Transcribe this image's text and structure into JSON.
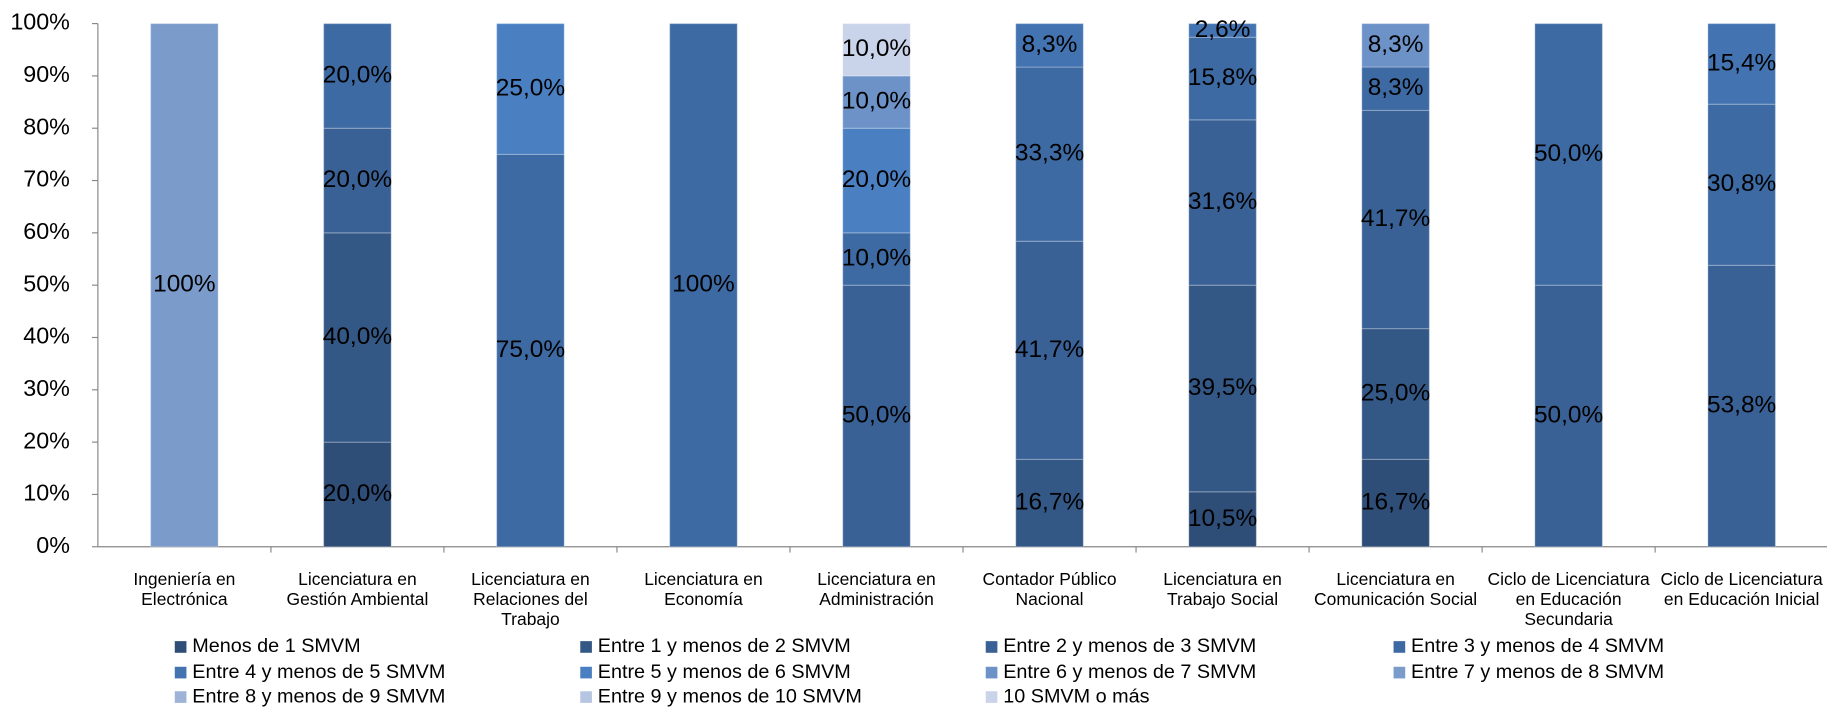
{
  "chart_data": {
    "type": "stacked_bar",
    "categories": [
      "Ingeniería en Electrónica",
      "Licenciatura en Gestión Ambiental",
      "Licenciatura en Relaciones del Trabajo",
      "Licenciatura en Economía",
      "Licenciatura en Administración",
      "Contador Público Nacional",
      "Licenciatura en Trabajo Social",
      "Licenciatura en Comunicación Social",
      "Ciclo de Licenciatura en Educación Secundaria",
      "Ciclo de Licenciatura en Educación Inicial"
    ],
    "ylim": [
      0,
      100
    ],
    "yticks": [
      {
        "value": 0,
        "label": "0%"
      },
      {
        "value": 10,
        "label": "10%"
      },
      {
        "value": 20,
        "label": "20%"
      },
      {
        "value": 30,
        "label": "30%"
      },
      {
        "value": 40,
        "label": "40%"
      },
      {
        "value": 50,
        "label": "50%"
      },
      {
        "value": 60,
        "label": "60%"
      },
      {
        "value": 70,
        "label": "70%"
      },
      {
        "value": 80,
        "label": "80%"
      },
      {
        "value": 90,
        "label": "90%"
      },
      {
        "value": 100,
        "label": "100%"
      }
    ],
    "series": [
      {
        "name": "Menos de 1 SMVM",
        "color": "#2e4d77",
        "values": [
          null,
          20,
          null,
          null,
          null,
          null,
          10.5,
          16.7,
          null,
          null
        ],
        "value_labels": [
          null,
          "20,0%",
          null,
          null,
          null,
          null,
          "10,5%",
          "16,7%",
          null,
          null
        ]
      },
      {
        "name": "Entre 1 y menos de 2 SMVM",
        "color": "#345886",
        "values": [
          null,
          40,
          null,
          null,
          null,
          16.7,
          39.5,
          25,
          null,
          null
        ],
        "value_labels": [
          null,
          "40,0%",
          null,
          null,
          null,
          "16,7%",
          "39,5%",
          "25,0%",
          null,
          null
        ]
      },
      {
        "name": "Entre 2 y menos de 3 SMVM",
        "color": "#3a6195",
        "values": [
          null,
          20,
          null,
          null,
          50,
          41.7,
          31.6,
          41.7,
          50,
          53.8
        ],
        "value_labels": [
          null,
          "20,0%",
          null,
          null,
          "50,0%",
          "41,7%",
          "31,6%",
          "41,7%",
          "50,0%",
          "53,8%"
        ]
      },
      {
        "name": "Entre 3 y menos de 4 SMVM",
        "color": "#3e6aa3",
        "values": [
          null,
          20,
          75,
          100,
          10,
          33.3,
          15.8,
          8.3,
          50,
          30.8
        ],
        "value_labels": [
          null,
          "20,0%",
          "75,0%",
          "100%",
          "10,0%",
          "33,3%",
          "15,8%",
          "8,3%",
          "50,0%",
          "30,8%"
        ]
      },
      {
        "name": "Entre 4 y menos de 5 SMVM",
        "color": "#4373b1",
        "values": [
          null,
          null,
          null,
          null,
          null,
          8.3,
          2.6,
          null,
          null,
          15.4
        ],
        "value_labels": [
          null,
          null,
          null,
          null,
          null,
          "8,3%",
          "2,6%",
          null,
          null,
          "15,4%"
        ]
      },
      {
        "name": "Entre 5 y menos de 6 SMVM",
        "color": "#4a80c2",
        "values": [
          null,
          null,
          25,
          null,
          20,
          null,
          null,
          null,
          null,
          null
        ],
        "value_labels": [
          null,
          null,
          "25,0%",
          null,
          "20,0%",
          null,
          null,
          null,
          null,
          null
        ]
      },
      {
        "name": "Entre 6 y menos de 7 SMVM",
        "color": "#6d92c8",
        "values": [
          null,
          null,
          null,
          null,
          10,
          null,
          null,
          8.3,
          null,
          null
        ],
        "value_labels": [
          null,
          null,
          null,
          null,
          "10,0%",
          null,
          null,
          "8,3%",
          null,
          null
        ]
      },
      {
        "name": "Entre 7 y menos de 8 SMVM",
        "color": "#7b9bcb",
        "values": [
          100,
          null,
          null,
          null,
          null,
          null,
          null,
          null,
          null,
          null
        ],
        "value_labels": [
          "100%",
          null,
          null,
          null,
          null,
          null,
          null,
          null,
          null,
          null
        ]
      },
      {
        "name": "Entre 8 y menos de 9 SMVM",
        "color": "#9fb3d7",
        "values": [
          null,
          null,
          null,
          null,
          null,
          null,
          null,
          null,
          null,
          null
        ],
        "value_labels": [
          null,
          null,
          null,
          null,
          null,
          null,
          null,
          null,
          null,
          null
        ]
      },
      {
        "name": "Entre 9 y menos de 10 SMVM",
        "color": "#b6c6e2",
        "values": [
          null,
          null,
          null,
          null,
          null,
          null,
          null,
          null,
          null,
          null
        ],
        "value_labels": [
          null,
          null,
          null,
          null,
          null,
          null,
          null,
          null,
          null,
          null
        ]
      },
      {
        "name": "10 SMVM o más",
        "color": "#c9d4ea",
        "values": [
          null,
          null,
          null,
          null,
          10,
          null,
          null,
          null,
          null,
          null
        ],
        "value_labels": [
          null,
          null,
          null,
          null,
          "10,0%",
          null,
          null,
          null,
          null,
          null
        ]
      }
    ]
  }
}
